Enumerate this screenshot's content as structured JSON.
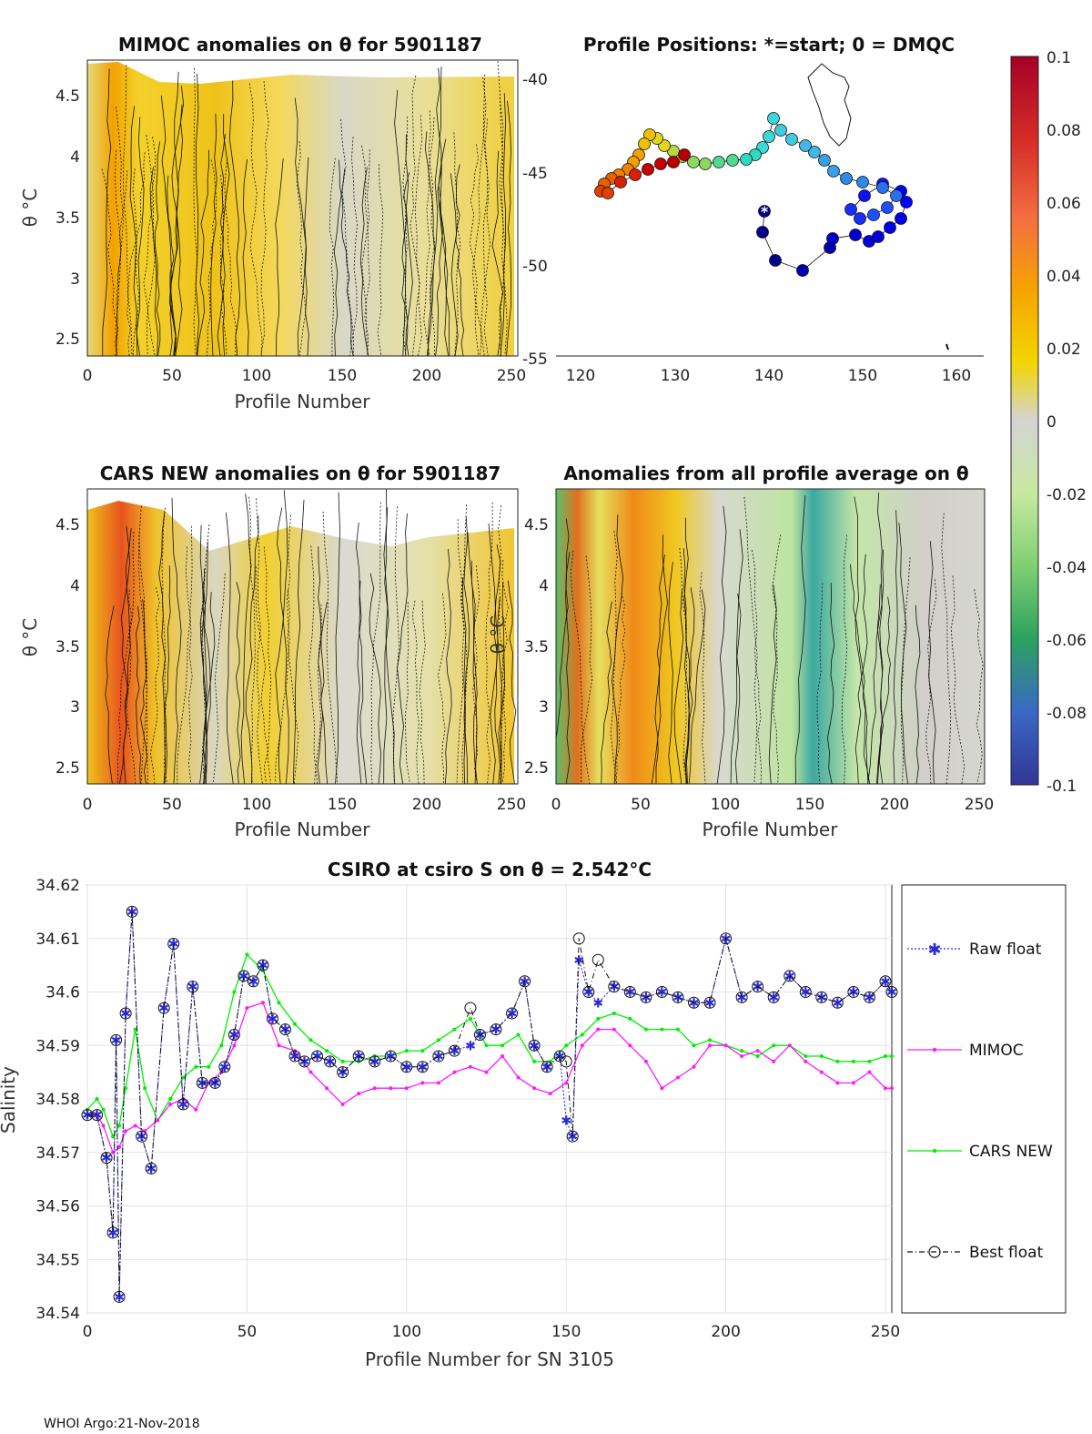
{
  "footer": "WHOI Argo:21-Nov-2018",
  "panels": {
    "mimoc": {
      "title": "MIMOC anomalies on θ  for 5901187",
      "xlabel": "Profile Number",
      "ylabel": "θ °C",
      "xticks": [
        "0",
        "50",
        "100",
        "150",
        "200",
        "250"
      ],
      "yticks": [
        "2.5",
        "3",
        "3.5",
        "4",
        "4.5"
      ]
    },
    "positions": {
      "title": "Profile Positions: *=start; 0 = DMQC",
      "xticks": [
        "120",
        "130",
        "140",
        "150",
        "160"
      ],
      "yticks": [
        "-40",
        "-45",
        "-50",
        "-55"
      ]
    },
    "cars": {
      "title": "CARS NEW anomalies on θ for 5901187",
      "xlabel": "Profile Number",
      "ylabel": "θ °C",
      "xticks": [
        "0",
        "50",
        "100",
        "150",
        "200",
        "250"
      ],
      "yticks": [
        "2.5",
        "3",
        "3.5",
        "4",
        "4.5"
      ]
    },
    "allavg": {
      "title": "Anomalies from all profile average on θ",
      "xlabel": "Profile Number",
      "ylabel": "θ °C",
      "xticks": [
        "0",
        "50",
        "100",
        "150",
        "200",
        "250"
      ],
      "yticks": [
        "2.5",
        "3",
        "3.5",
        "4",
        "4.5"
      ]
    },
    "colorbar": {
      "ticks": [
        "0.1",
        "0.08",
        "0.06",
        "0.04",
        "0.02",
        "0",
        "-0.02",
        "-0.04",
        "-0.06",
        "-0.08",
        "-0.1"
      ]
    }
  },
  "chart_data": {
    "type": "line",
    "title": "CSIRO at csiro S on θ = 2.542°C",
    "xlabel": "Profile Number for SN 3105",
    "ylabel": "Salinity",
    "xlim": [
      0,
      252
    ],
    "ylim": [
      34.54,
      34.62
    ],
    "xticks": [
      "0",
      "50",
      "100",
      "150",
      "200",
      "250"
    ],
    "yticks": [
      "34.62",
      "34.61",
      "34.6",
      "34.59",
      "34.58",
      "34.57",
      "34.56",
      "34.55",
      "34.54"
    ],
    "legend": [
      "Raw float",
      "MIMOC",
      "CARS NEW",
      "Best float"
    ],
    "series": [
      {
        "name": "Raw float",
        "x": [
          0,
          3,
          6,
          8,
          9,
          10,
          12,
          14,
          17,
          20,
          24,
          27,
          30,
          33,
          36,
          40,
          43,
          46,
          49,
          52,
          55,
          58,
          62,
          65,
          68,
          72,
          76,
          80,
          85,
          90,
          95,
          100,
          105,
          110,
          115,
          120,
          123,
          128,
          133,
          137,
          140,
          144,
          148,
          150,
          152,
          154,
          157,
          160,
          165,
          170,
          175,
          180,
          185,
          190,
          195,
          200,
          205,
          210,
          215,
          220,
          225,
          230,
          235,
          240,
          245,
          250,
          252
        ],
        "values": [
          34.577,
          34.577,
          34.569,
          34.555,
          34.591,
          34.543,
          34.596,
          34.615,
          34.573,
          34.567,
          34.597,
          34.609,
          34.579,
          34.601,
          34.583,
          34.583,
          34.586,
          34.592,
          34.603,
          34.602,
          34.605,
          34.595,
          34.593,
          34.588,
          34.587,
          34.588,
          34.587,
          34.585,
          34.588,
          34.587,
          34.588,
          34.586,
          34.586,
          34.588,
          34.589,
          34.59,
          34.592,
          34.593,
          34.596,
          34.602,
          34.59,
          34.586,
          34.588,
          34.576,
          34.573,
          34.606,
          34.6,
          34.598,
          34.601,
          34.6,
          34.599,
          34.6,
          34.599,
          34.598,
          34.598,
          34.61,
          34.599,
          34.601,
          34.599,
          34.603,
          34.6,
          34.599,
          34.598,
          34.6,
          34.599,
          34.602,
          34.6
        ]
      },
      {
        "name": "MIMOC",
        "x": [
          0,
          3,
          5,
          8,
          10,
          12,
          15,
          18,
          22,
          26,
          30,
          34,
          38,
          42,
          46,
          50,
          55,
          60,
          65,
          70,
          75,
          80,
          85,
          90,
          95,
          100,
          105,
          110,
          115,
          120,
          125,
          130,
          135,
          140,
          145,
          150,
          155,
          160,
          165,
          170,
          175,
          180,
          185,
          190,
          195,
          200,
          205,
          210,
          215,
          220,
          225,
          230,
          235,
          240,
          245,
          250,
          252
        ],
        "values": [
          34.577,
          34.577,
          34.575,
          34.57,
          34.571,
          34.574,
          34.575,
          34.574,
          34.576,
          34.579,
          34.58,
          34.578,
          34.583,
          34.585,
          34.59,
          34.597,
          34.598,
          34.59,
          34.589,
          34.585,
          34.582,
          34.579,
          34.581,
          34.582,
          34.582,
          34.582,
          34.583,
          34.583,
          34.585,
          34.586,
          34.585,
          34.588,
          34.584,
          34.582,
          34.581,
          34.583,
          34.59,
          34.593,
          34.593,
          34.59,
          34.587,
          34.582,
          34.584,
          34.586,
          34.59,
          34.59,
          34.588,
          34.589,
          34.587,
          34.59,
          34.587,
          34.585,
          34.583,
          34.583,
          34.585,
          34.582,
          34.582
        ]
      },
      {
        "name": "CARS NEW",
        "x": [
          0,
          3,
          5,
          8,
          10,
          12,
          15,
          18,
          22,
          26,
          30,
          34,
          38,
          42,
          46,
          50,
          55,
          60,
          65,
          70,
          75,
          80,
          85,
          90,
          95,
          100,
          105,
          110,
          115,
          120,
          125,
          130,
          135,
          140,
          145,
          150,
          155,
          160,
          165,
          170,
          175,
          180,
          185,
          190,
          195,
          200,
          205,
          210,
          215,
          220,
          225,
          230,
          235,
          240,
          245,
          250,
          252
        ],
        "values": [
          34.578,
          34.58,
          34.578,
          34.573,
          34.575,
          34.582,
          34.593,
          34.582,
          34.576,
          34.58,
          34.584,
          34.586,
          34.586,
          34.59,
          34.6,
          34.607,
          34.604,
          34.598,
          34.594,
          34.591,
          34.589,
          34.587,
          34.587,
          34.588,
          34.588,
          34.589,
          34.589,
          34.591,
          34.593,
          34.595,
          34.59,
          34.59,
          34.592,
          34.587,
          34.587,
          34.59,
          34.592,
          34.595,
          34.596,
          34.595,
          34.593,
          34.593,
          34.593,
          34.59,
          34.591,
          34.59,
          34.589,
          34.588,
          34.59,
          34.59,
          34.588,
          34.588,
          34.587,
          34.587,
          34.587,
          34.588,
          34.588
        ]
      },
      {
        "name": "Best float",
        "x": [
          0,
          3,
          6,
          8,
          9,
          10,
          12,
          14,
          17,
          20,
          24,
          27,
          30,
          33,
          36,
          40,
          43,
          46,
          49,
          52,
          55,
          58,
          62,
          65,
          68,
          72,
          76,
          80,
          85,
          90,
          95,
          100,
          105,
          110,
          115,
          120,
          123,
          128,
          133,
          137,
          140,
          144,
          148,
          150,
          152,
          154,
          157,
          160,
          165,
          170,
          175,
          180,
          185,
          190,
          195,
          200,
          205,
          210,
          215,
          220,
          225,
          230,
          235,
          240,
          245,
          250,
          252
        ],
        "values": [
          34.577,
          34.577,
          34.569,
          34.555,
          34.591,
          34.543,
          34.596,
          34.615,
          34.573,
          34.567,
          34.597,
          34.609,
          34.579,
          34.601,
          34.583,
          34.583,
          34.586,
          34.592,
          34.603,
          34.602,
          34.605,
          34.595,
          34.593,
          34.588,
          34.587,
          34.588,
          34.587,
          34.585,
          34.588,
          34.587,
          34.588,
          34.586,
          34.586,
          34.588,
          34.589,
          34.597,
          34.592,
          34.593,
          34.596,
          34.602,
          34.59,
          34.586,
          34.588,
          34.587,
          34.573,
          34.61,
          34.6,
          34.606,
          34.601,
          34.6,
          34.599,
          34.6,
          34.599,
          34.598,
          34.598,
          34.61,
          34.599,
          34.601,
          34.599,
          34.603,
          34.6,
          34.599,
          34.598,
          34.6,
          34.599,
          34.602,
          34.6
        ]
      }
    ]
  }
}
